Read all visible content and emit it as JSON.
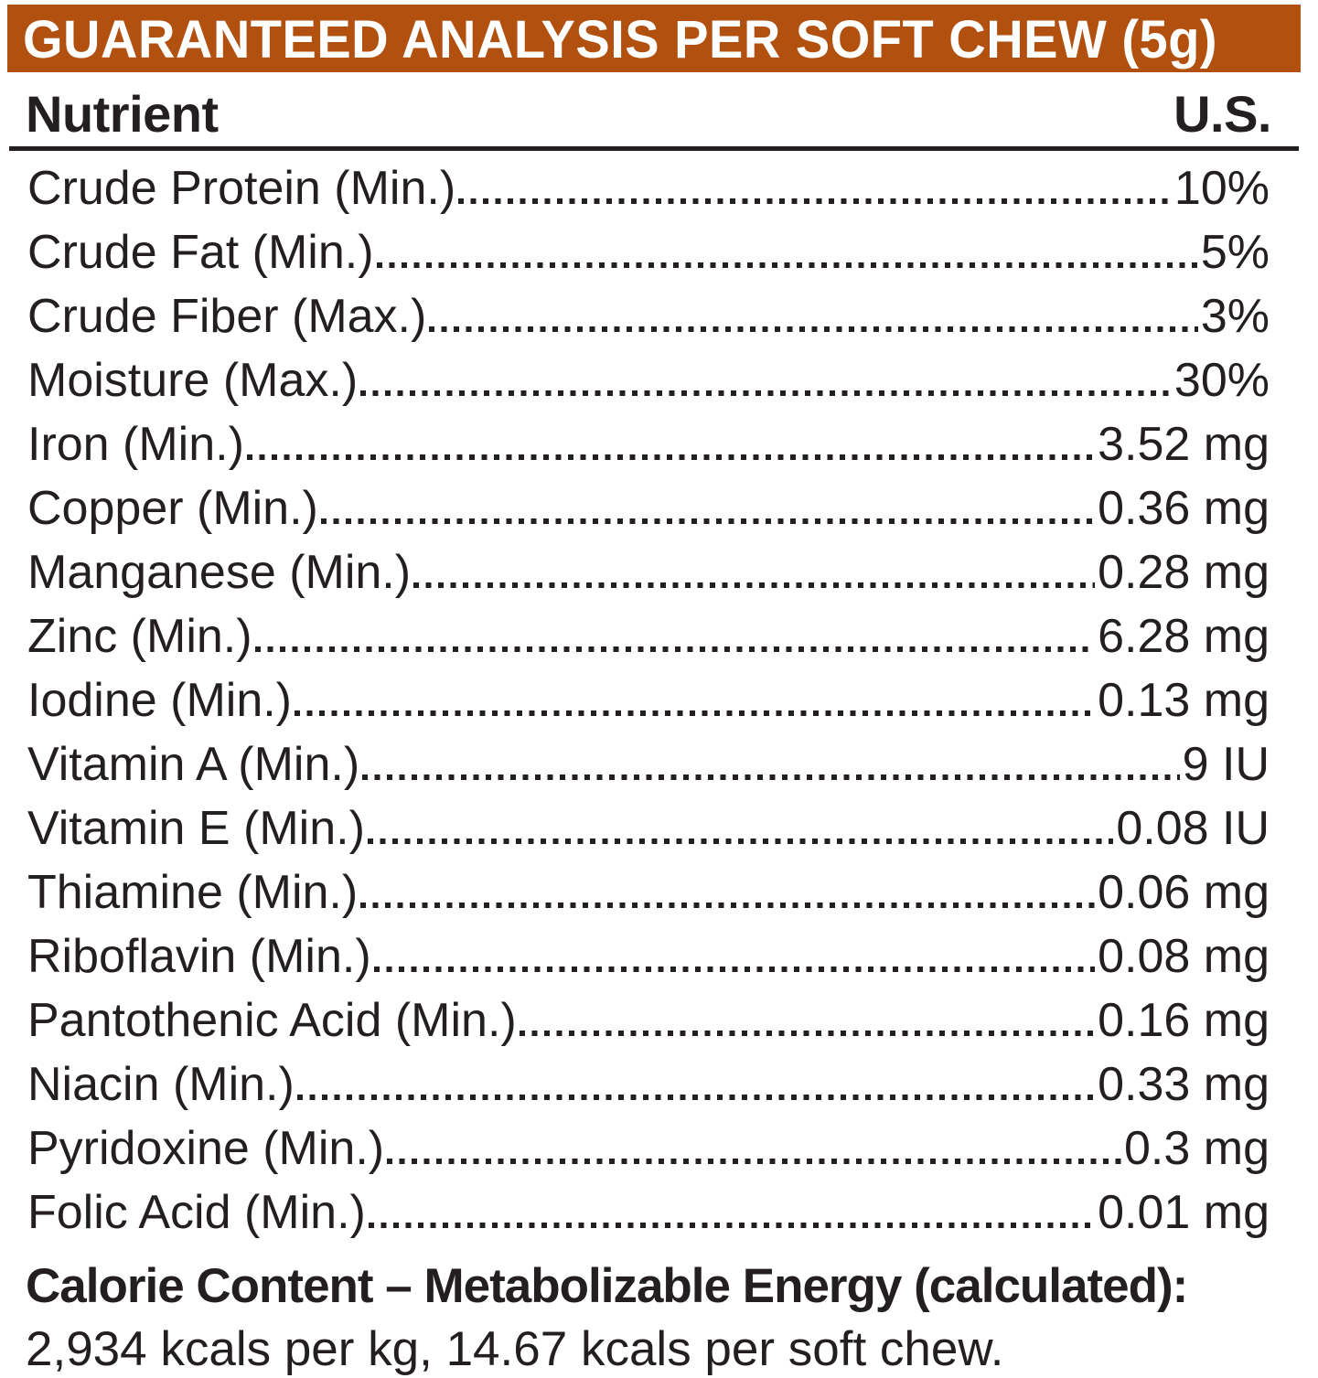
{
  "header": {
    "title": "GUARANTEED ANALYSIS PER SOFT CHEW (5g)",
    "bg_color": "#b1500f",
    "text_color": "#ffffff"
  },
  "table": {
    "columns": {
      "nutrient": "Nutrient",
      "us": "U.S."
    },
    "rows": [
      {
        "label": "Crude Protein (Min.)",
        "value": "10%"
      },
      {
        "label": "Crude Fat (Min.)",
        "value": "5%"
      },
      {
        "label": "Crude Fiber (Max.)",
        "value": "3%"
      },
      {
        "label": "Moisture (Max.)",
        "value": "30%"
      },
      {
        "label": "Iron (Min.)",
        "value": "3.52 mg"
      },
      {
        "label": "Copper (Min.)",
        "value": "0.36 mg"
      },
      {
        "label": "Manganese (Min.)",
        "value": "0.28 mg"
      },
      {
        "label": "Zinc (Min.)",
        "value": "6.28 mg"
      },
      {
        "label": "Iodine (Min.)",
        "value": "0.13 mg"
      },
      {
        "label": "Vitamin A (Min.)",
        "value": "9 IU"
      },
      {
        "label": "Vitamin E (Min.)",
        "value": "0.08 IU"
      },
      {
        "label": "Thiamine (Min.)",
        "value": "0.06 mg"
      },
      {
        "label": "Riboflavin (Min.)",
        "value": "0.08 mg"
      },
      {
        "label": "Pantothenic Acid (Min.)",
        "value": "0.16 mg"
      },
      {
        "label": "Niacin (Min.)",
        "value": "0.33 mg"
      },
      {
        "label": "Pyridoxine (Min.)",
        "value": "0.3 mg"
      },
      {
        "label": "Folic Acid (Min.)",
        "value": "0.01 mg"
      }
    ],
    "ink_color": "#231f20"
  },
  "footer": {
    "calorie_heading": "Calorie Content – Metabolizable Energy (calculated):",
    "calorie_detail": "2,934 kcals per kg, 14.67 kcals per soft chew."
  }
}
